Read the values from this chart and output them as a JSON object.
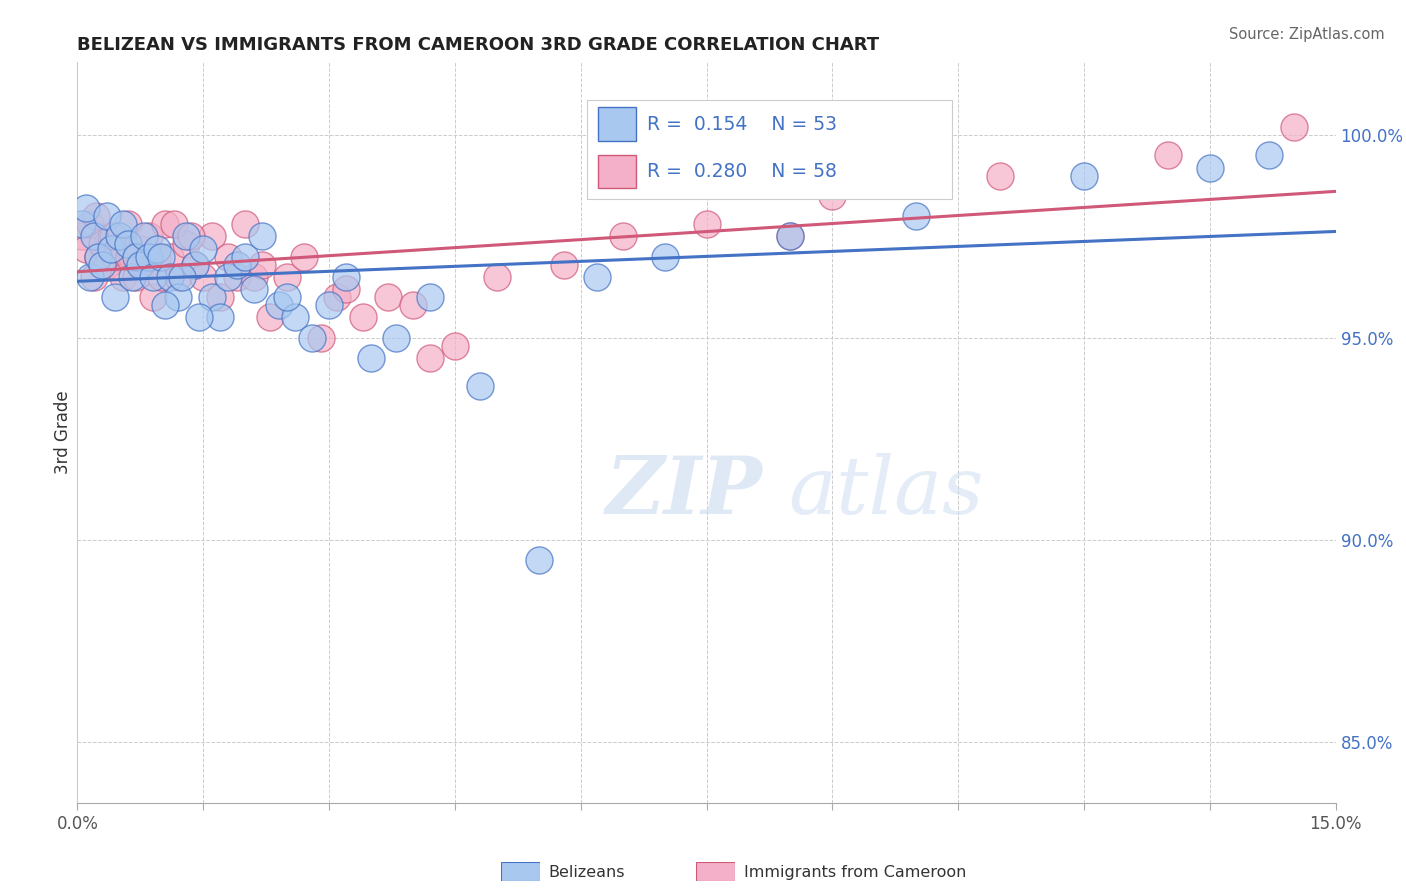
{
  "title": "BELIZEAN VS IMMIGRANTS FROM CAMEROON 3RD GRADE CORRELATION CHART",
  "source": "Source: ZipAtlas.com",
  "ylabel": "3rd Grade",
  "ylabel_right_ticks": [
    100.0,
    95.0,
    90.0,
    85.0
  ],
  "ylabel_right_labels": [
    "100.0%",
    "95.0%",
    "90.0%",
    "85.0%"
  ],
  "xmin": 0.0,
  "xmax": 15.0,
  "ymin": 83.5,
  "ymax": 101.8,
  "legend_label1": "Belizeans",
  "legend_label2": "Immigrants from Cameroon",
  "R1": 0.154,
  "N1": 53,
  "R2": 0.28,
  "N2": 58,
  "blue_color": "#A8C8F0",
  "pink_color": "#F4B0C8",
  "blue_line_color": "#4472C4",
  "pink_line_color": "#D05878",
  "blue_scatter_x": [
    0.05,
    0.1,
    0.15,
    0.2,
    0.25,
    0.3,
    0.35,
    0.4,
    0.45,
    0.5,
    0.55,
    0.6,
    0.65,
    0.7,
    0.75,
    0.8,
    0.85,
    0.9,
    0.95,
    1.0,
    1.1,
    1.2,
    1.3,
    1.4,
    1.5,
    1.6,
    1.7,
    1.8,
    1.9,
    2.0,
    2.1,
    2.2,
    2.4,
    2.6,
    2.8,
    3.0,
    3.2,
    3.5,
    3.8,
    4.2,
    4.8,
    5.5,
    6.2,
    7.0,
    8.5,
    10.0,
    12.0,
    13.5,
    14.2,
    1.05,
    1.25,
    1.45,
    2.5
  ],
  "blue_scatter_y": [
    97.8,
    98.2,
    96.5,
    97.5,
    97.0,
    96.8,
    98.0,
    97.2,
    96.0,
    97.5,
    97.8,
    97.3,
    96.5,
    97.0,
    96.8,
    97.5,
    97.0,
    96.5,
    97.2,
    97.0,
    96.5,
    96.0,
    97.5,
    96.8,
    97.2,
    96.0,
    95.5,
    96.5,
    96.8,
    97.0,
    96.2,
    97.5,
    95.8,
    95.5,
    95.0,
    95.8,
    96.5,
    94.5,
    95.0,
    96.0,
    93.8,
    89.5,
    96.5,
    97.0,
    97.5,
    98.0,
    99.0,
    99.2,
    99.5,
    95.8,
    96.5,
    95.5,
    96.0
  ],
  "pink_scatter_x": [
    0.05,
    0.1,
    0.15,
    0.2,
    0.25,
    0.3,
    0.35,
    0.4,
    0.45,
    0.5,
    0.55,
    0.6,
    0.65,
    0.7,
    0.75,
    0.8,
    0.85,
    0.9,
    0.95,
    1.0,
    1.05,
    1.1,
    1.2,
    1.3,
    1.4,
    1.5,
    1.6,
    1.7,
    1.8,
    1.9,
    2.0,
    2.1,
    2.3,
    2.5,
    2.7,
    2.9,
    3.1,
    3.4,
    3.7,
    4.0,
    4.5,
    5.0,
    5.8,
    6.5,
    7.5,
    9.0,
    11.0,
    13.0,
    14.5,
    0.22,
    0.42,
    0.62,
    1.15,
    1.35,
    2.2,
    3.2,
    4.2,
    8.5
  ],
  "pink_scatter_y": [
    97.5,
    97.2,
    97.8,
    96.5,
    97.0,
    97.3,
    96.8,
    97.5,
    97.0,
    97.2,
    96.5,
    97.8,
    97.0,
    96.5,
    97.2,
    96.8,
    97.5,
    96.0,
    97.0,
    96.5,
    97.8,
    97.0,
    96.5,
    97.3,
    96.8,
    96.5,
    97.5,
    96.0,
    97.0,
    96.5,
    97.8,
    96.5,
    95.5,
    96.5,
    97.0,
    95.0,
    96.0,
    95.5,
    96.0,
    95.8,
    94.8,
    96.5,
    96.8,
    97.5,
    97.8,
    98.5,
    99.0,
    99.5,
    100.2,
    98.0,
    97.5,
    97.0,
    97.8,
    97.5,
    96.8,
    96.2,
    94.5,
    97.5
  ]
}
